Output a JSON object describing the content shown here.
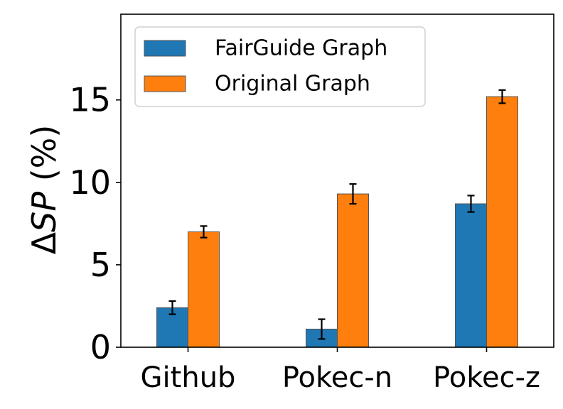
{
  "chart_data": {
    "type": "bar",
    "categories": [
      "Github",
      "Pokec-n",
      "Pokec-z"
    ],
    "series": [
      {
        "name": "FairGuide Graph",
        "color": "#1f77b4",
        "values": [
          2.4,
          1.1,
          8.7
        ],
        "errors": [
          0.4,
          0.6,
          0.5
        ]
      },
      {
        "name": "Original Graph",
        "color": "#ff7f0e",
        "values": [
          7.0,
          9.3,
          15.2
        ],
        "errors": [
          0.35,
          0.6,
          0.4
        ]
      }
    ],
    "ylabel_symbol": "Δ",
    "ylabel_italic": "SP",
    "ylabel_unit": " (%)",
    "yticks": [
      0,
      5,
      10,
      15
    ],
    "ylim": [
      0,
      20.2
    ],
    "grid": false,
    "legend_position": "top-left"
  }
}
